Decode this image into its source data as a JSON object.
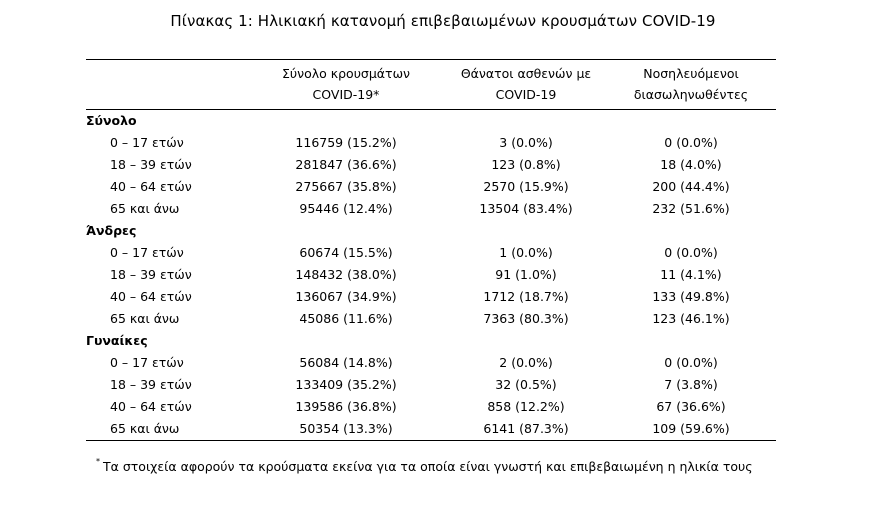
{
  "title": "Πίνακας 1: Ηλικιακή κατανομή επιβεβαιωμένων κρουσμάτων COVID-19",
  "columns": {
    "total": [
      "Σύνολο κρουσμάτων",
      "COVID-19*"
    ],
    "deaths": [
      "Θάνατοι ασθενών με",
      "COVID-19"
    ],
    "hospitalized": [
      "Νοσηλευόμενοι",
      "διασωληνωθέντες"
    ]
  },
  "groups": [
    {
      "name": "Σύνολο",
      "rows": [
        {
          "age": "0 – 17 ετών",
          "total": "116759 (15.2%)",
          "deaths": "3 (0.0%)",
          "hospitalized": "0 (0.0%)"
        },
        {
          "age": "18 – 39 ετών",
          "total": "281847 (36.6%)",
          "deaths": "123 (0.8%)",
          "hospitalized": "18 (4.0%)"
        },
        {
          "age": "40 – 64 ετών",
          "total": "275667 (35.8%)",
          "deaths": "2570 (15.9%)",
          "hospitalized": "200 (44.4%)"
        },
        {
          "age": "65 και άνω",
          "total": "95446 (12.4%)",
          "deaths": "13504 (83.4%)",
          "hospitalized": "232 (51.6%)"
        }
      ]
    },
    {
      "name": "Άνδρες",
      "rows": [
        {
          "age": "0 – 17 ετών",
          "total": "60674 (15.5%)",
          "deaths": "1 (0.0%)",
          "hospitalized": "0 (0.0%)"
        },
        {
          "age": "18 – 39 ετών",
          "total": "148432 (38.0%)",
          "deaths": "91 (1.0%)",
          "hospitalized": "11 (4.1%)"
        },
        {
          "age": "40 – 64 ετών",
          "total": "136067 (34.9%)",
          "deaths": "1712 (18.7%)",
          "hospitalized": "133 (49.8%)"
        },
        {
          "age": "65 και άνω",
          "total": "45086 (11.6%)",
          "deaths": "7363 (80.3%)",
          "hospitalized": "123 (46.1%)"
        }
      ]
    },
    {
      "name": "Γυναίκες",
      "rows": [
        {
          "age": "0 – 17 ετών",
          "total": "56084 (14.8%)",
          "deaths": "2 (0.0%)",
          "hospitalized": "0 (0.0%)"
        },
        {
          "age": "18 – 39 ετών",
          "total": "133409 (35.2%)",
          "deaths": "32 (0.5%)",
          "hospitalized": "7 (3.8%)"
        },
        {
          "age": "40 – 64 ετών",
          "total": "139586 (36.8%)",
          "deaths": "858 (12.2%)",
          "hospitalized": "67 (36.6%)"
        },
        {
          "age": "65 και άνω",
          "total": "50354 (13.3%)",
          "deaths": "6141 (87.3%)",
          "hospitalized": "109 (59.6%)"
        }
      ]
    }
  ],
  "footnote": {
    "marker": "*",
    "text": "Τα στοιχεία αφορούν τα κρούσματα εκείνα για τα οποία είναι γνωστή και επιβεβαιωμένη η ηλικία τους"
  }
}
